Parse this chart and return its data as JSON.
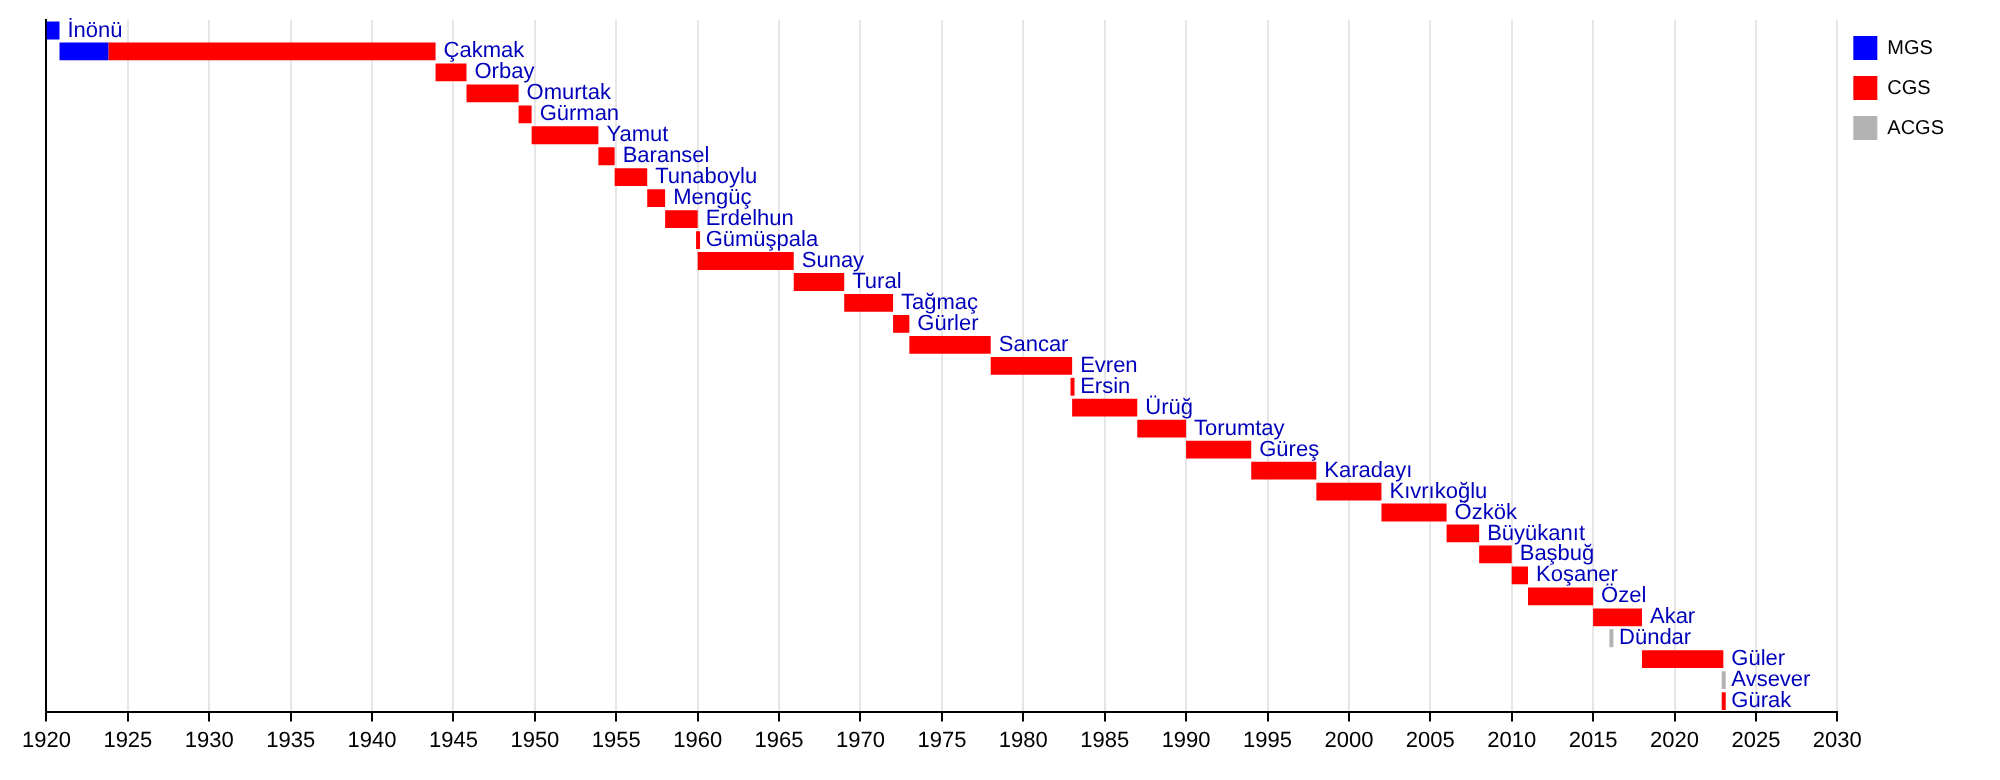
{
  "chart_data": {
    "type": "bar",
    "orientation": "horizontal",
    "categories": [
      "İnönü",
      "Çakmak",
      "Orbay",
      "Omurtak",
      "Gürman",
      "Yamut",
      "Baransel",
      "Tunaboylu",
      "Mengüç",
      "Erdelhun",
      "Gümüşpala",
      "Sunay",
      "Tural",
      "Tağmaç",
      "Gürler",
      "Sancar",
      "Evren",
      "Ersin",
      "Ürüğ",
      "Torumtay",
      "Güreş",
      "Karadayı",
      "Kıvrıkoğlu",
      "Özkök",
      "Büyükanıt",
      "Başbuğ",
      "Koşaner",
      "Özel",
      "Akar",
      "Dündar",
      "Güler",
      "Avsever",
      "Gürak"
    ],
    "series": [
      {
        "name": "MGS",
        "color": "#0000ff",
        "base": [
          1920.0,
          1920.8,
          null,
          null,
          null,
          null,
          null,
          null,
          null,
          null,
          null,
          null,
          null,
          null,
          null,
          null,
          null,
          null,
          null,
          null,
          null,
          null,
          null,
          null,
          null,
          null,
          null,
          null,
          null,
          null,
          null,
          null,
          null
        ],
        "values": [
          0.8,
          3.0,
          null,
          null,
          null,
          null,
          null,
          null,
          null,
          null,
          null,
          null,
          null,
          null,
          null,
          null,
          null,
          null,
          null,
          null,
          null,
          null,
          null,
          null,
          null,
          null,
          null,
          null,
          null,
          null,
          null,
          null,
          null
        ]
      },
      {
        "name": "CGS",
        "color": "#ff0000",
        "base": [
          null,
          1923.8,
          1943.9,
          1945.8,
          1949.0,
          1949.8,
          1953.9,
          1954.9,
          1956.9,
          1958.0,
          1959.9,
          1960.0,
          1965.9,
          1969.0,
          1972.0,
          1973.0,
          1978.0,
          1982.9,
          1983.0,
          1987.0,
          1990.0,
          1994.0,
          1998.0,
          2002.0,
          2006.0,
          2008.0,
          2010.0,
          2011.0,
          2015.0,
          null,
          2018.0,
          null,
          2022.9
        ],
        "values": [
          null,
          20.1,
          1.9,
          3.2,
          0.8,
          4.1,
          1.0,
          2.0,
          1.1,
          2.0,
          0.1,
          5.9,
          3.1,
          3.0,
          1.0,
          5.0,
          5.0,
          0.1,
          4.0,
          3.0,
          4.0,
          4.0,
          4.0,
          4.0,
          2.0,
          2.0,
          1.0,
          4.0,
          3.0,
          null,
          5.0,
          null,
          0.1
        ]
      },
      {
        "name": "ACGS",
        "color": "#b3b3b3",
        "base": [
          null,
          null,
          null,
          null,
          null,
          null,
          null,
          null,
          null,
          null,
          null,
          null,
          null,
          null,
          null,
          null,
          null,
          null,
          null,
          null,
          null,
          null,
          null,
          null,
          null,
          null,
          null,
          null,
          null,
          2016.0,
          null,
          2022.9,
          null
        ],
        "values": [
          null,
          null,
          null,
          null,
          null,
          null,
          null,
          null,
          null,
          null,
          null,
          null,
          null,
          null,
          null,
          null,
          null,
          null,
          null,
          null,
          null,
          null,
          null,
          null,
          null,
          null,
          null,
          null,
          null,
          0.1,
          null,
          0.1,
          null
        ]
      }
    ],
    "xlim": [
      1920,
      2030
    ],
    "xticks": [
      1920,
      1925,
      1930,
      1935,
      1940,
      1945,
      1950,
      1955,
      1960,
      1965,
      1970,
      1975,
      1980,
      1985,
      1990,
      1995,
      2000,
      2005,
      2010,
      2015,
      2020,
      2025,
      2030
    ],
    "tick_labels": "x",
    "grid": "x",
    "legend": "top right"
  }
}
